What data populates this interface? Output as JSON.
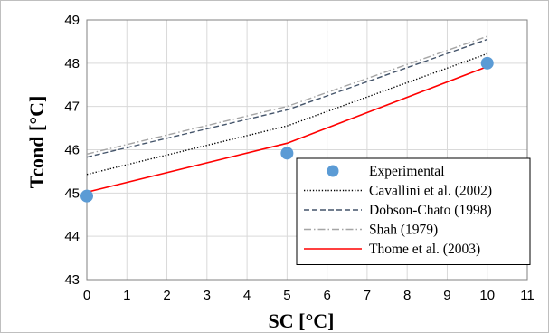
{
  "chart_data": {
    "type": "line",
    "title": "",
    "xlabel": "SC [°C]",
    "ylabel": "Tcond [°C]",
    "xlim": [
      0,
      11
    ],
    "ylim": [
      43,
      49
    ],
    "xticks": [
      "0",
      "1",
      "2",
      "3",
      "4",
      "5",
      "6",
      "7",
      "8",
      "9",
      "10",
      "11"
    ],
    "yticks": [
      "43",
      "44",
      "45",
      "46",
      "47",
      "48",
      "49"
    ],
    "grid": true,
    "legend_position": "bottom-right",
    "series": [
      {
        "name": "Experimental",
        "kind": "scatter",
        "color": "#5b9bd5",
        "x": [
          0,
          5,
          10
        ],
        "y": [
          44.93,
          45.92,
          48.0
        ]
      },
      {
        "name": "Cavallini et al. (2002)",
        "kind": "line",
        "style": "dotted",
        "color": "#000000",
        "x": [
          0,
          5,
          10
        ],
        "y": [
          45.43,
          46.55,
          48.22
        ]
      },
      {
        "name": "Dobson-Chato (1998)",
        "kind": "line",
        "style": "dashed",
        "color": "#44546a",
        "x": [
          0,
          5,
          10
        ],
        "y": [
          45.83,
          46.92,
          48.55
        ]
      },
      {
        "name": "Shah (1979)",
        "kind": "line",
        "style": "dashdot",
        "color": "#a6a6a6",
        "x": [
          0,
          5,
          10
        ],
        "y": [
          45.9,
          47.0,
          48.62
        ]
      },
      {
        "name": "Thome et al. (2003)",
        "kind": "line",
        "style": "solid",
        "color": "#ff0000",
        "x": [
          0,
          5,
          10
        ],
        "y": [
          45.02,
          46.15,
          47.92
        ]
      }
    ]
  }
}
